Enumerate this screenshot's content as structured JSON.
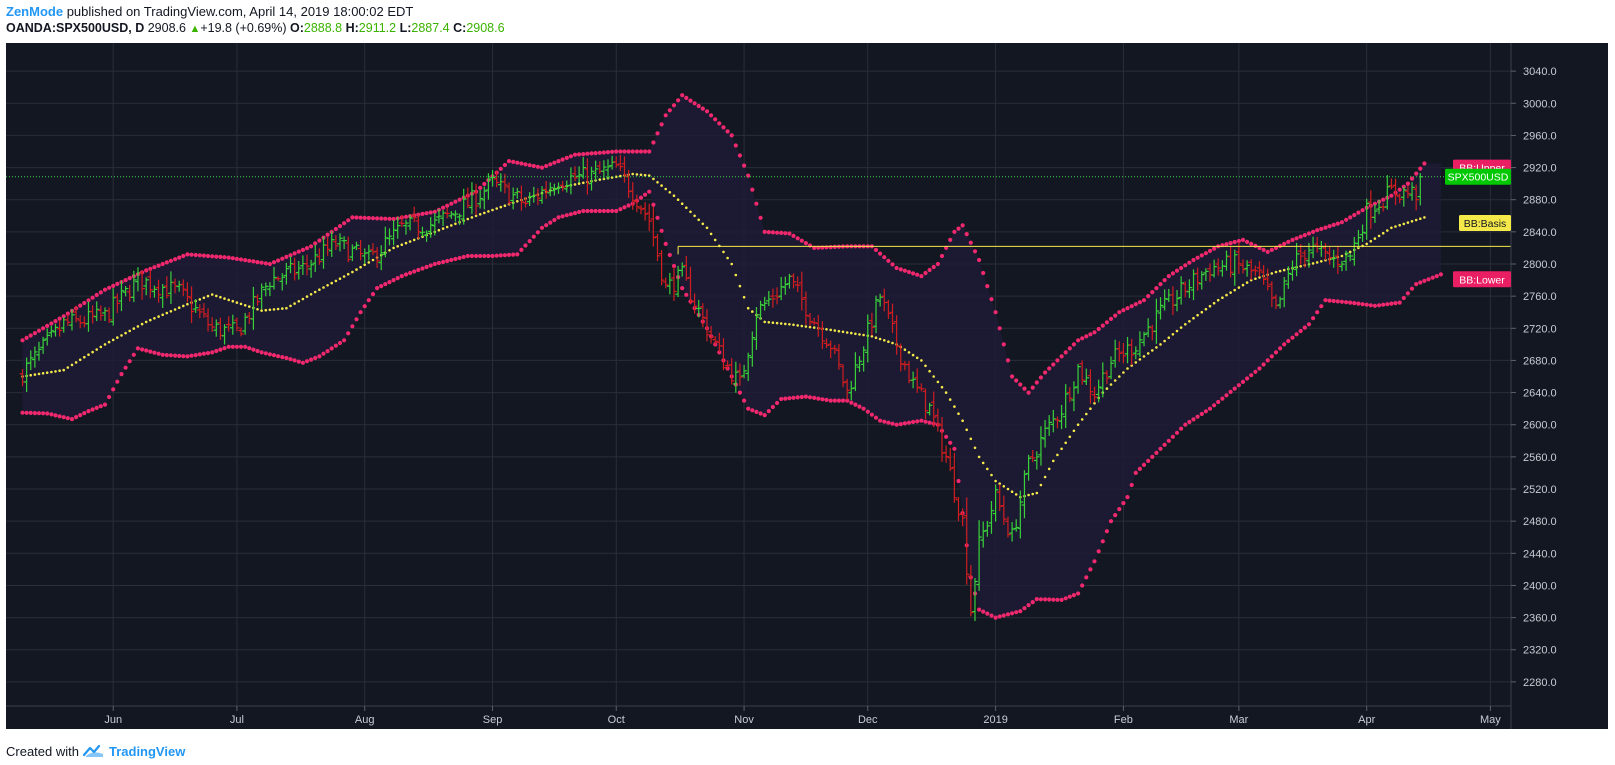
{
  "header": {
    "author": "ZenMode",
    "published_text": "published on TradingView.com, April 14, 2019 18:00:02 EDT",
    "symbol": "OANDA:SPX500USD, D",
    "last_price": "2908.6",
    "change_arrow": "▲",
    "change": "+19.8 (+0.69%)",
    "open_label": "O:",
    "open": "2888.8",
    "high_label": "H:",
    "high": "2911.2",
    "low_label": "L:",
    "low": "2887.4",
    "close_label": "C:",
    "close": "2908.6"
  },
  "footer": {
    "created_with": "Created with",
    "brand": "TradingView"
  },
  "colors": {
    "background": "#131722",
    "grid": "#2a2e39",
    "up": "#39d13a",
    "down": "#d11d20",
    "band": "#f0286e",
    "basis": "#f5e94a",
    "hline": "#f5e94a",
    "price_line": "#3bd34a",
    "axis_text": "#c8cbd2"
  },
  "chart_data": {
    "type": "ohlc",
    "title": "OANDA:SPX500USD, D",
    "y_axis": {
      "range": [
        2250,
        3075
      ],
      "ticks": [
        "3040.0",
        "3000.0",
        "2960.0",
        "2920.0",
        "2880.0",
        "2840.0",
        "2800.0",
        "2760.0",
        "2720.0",
        "2680.0",
        "2640.0",
        "2600.0",
        "2560.0",
        "2520.0",
        "2480.0",
        "2440.0",
        "2400.0",
        "2360.0",
        "2320.0",
        "2280.0"
      ]
    },
    "x_axis": {
      "labels": [
        {
          "text": "Jun",
          "day": 22
        },
        {
          "text": "Jul",
          "day": 52
        },
        {
          "text": "Aug",
          "day": 83
        },
        {
          "text": "Sep",
          "day": 114
        },
        {
          "text": "Oct",
          "day": 144
        },
        {
          "text": "Nov",
          "day": 175
        },
        {
          "text": "Dec",
          "day": 205
        },
        {
          "text": "2019",
          "day": 236
        },
        {
          "text": "Feb",
          "day": 267
        },
        {
          "text": "Mar",
          "day": 295
        },
        {
          "text": "Apr",
          "day": 326
        },
        {
          "text": "May",
          "day": 356
        }
      ],
      "day_range": [
        -4,
        361
      ]
    },
    "horizontal_line": {
      "value": 2822,
      "start_day": 159
    },
    "last_price_line": {
      "value": 2908.6
    },
    "badges": {
      "upper": {
        "label": "BB:Upper",
        "value": 2920
      },
      "price": {
        "label": "SPX500USD",
        "value": 2908.6
      },
      "basis": {
        "label": "BB:Basis",
        "value": 2851
      },
      "lower": {
        "label": "BB:Lower",
        "value": 2781
      }
    },
    "anchors": {
      "close": [
        [
          0,
          2665
        ],
        [
          10,
          2725
        ],
        [
          20,
          2735
        ],
        [
          28,
          2780
        ],
        [
          38,
          2765
        ],
        [
          46,
          2720
        ],
        [
          52,
          2715
        ],
        [
          60,
          2780
        ],
        [
          68,
          2795
        ],
        [
          76,
          2825
        ],
        [
          84,
          2805
        ],
        [
          92,
          2845
        ],
        [
          100,
          2850
        ],
        [
          108,
          2875
        ],
        [
          114,
          2900
        ],
        [
          122,
          2875
        ],
        [
          130,
          2905
        ],
        [
          138,
          2910
        ],
        [
          144,
          2920
        ],
        [
          148,
          2890
        ],
        [
          152,
          2855
        ],
        [
          156,
          2770
        ],
        [
          160,
          2785
        ],
        [
          166,
          2720
        ],
        [
          170,
          2680
        ],
        [
          174,
          2650
        ],
        [
          178,
          2740
        ],
        [
          182,
          2760
        ],
        [
          186,
          2780
        ],
        [
          192,
          2730
        ],
        [
          196,
          2700
        ],
        [
          200,
          2640
        ],
        [
          204,
          2700
        ],
        [
          208,
          2760
        ],
        [
          212,
          2700
        ],
        [
          216,
          2650
        ],
        [
          220,
          2620
        ],
        [
          224,
          2560
        ],
        [
          228,
          2480
        ],
        [
          230,
          2370
        ],
        [
          232,
          2450
        ],
        [
          236,
          2510
        ],
        [
          240,
          2460
        ],
        [
          244,
          2550
        ],
        [
          248,
          2590
        ],
        [
          252,
          2620
        ],
        [
          256,
          2670
        ],
        [
          260,
          2640
        ],
        [
          264,
          2680
        ],
        [
          270,
          2700
        ],
        [
          276,
          2740
        ],
        [
          282,
          2770
        ],
        [
          288,
          2795
        ],
        [
          294,
          2800
        ],
        [
          300,
          2785
        ],
        [
          304,
          2740
        ],
        [
          308,
          2800
        ],
        [
          312,
          2820
        ],
        [
          318,
          2805
        ],
        [
          322,
          2810
        ],
        [
          326,
          2865
        ],
        [
          332,
          2890
        ],
        [
          338,
          2888
        ],
        [
          339,
          2908.6
        ]
      ],
      "upper": [
        [
          0,
          2705
        ],
        [
          10,
          2735
        ],
        [
          20,
          2768
        ],
        [
          30,
          2792
        ],
        [
          40,
          2812
        ],
        [
          50,
          2808
        ],
        [
          60,
          2800
        ],
        [
          70,
          2822
        ],
        [
          80,
          2858
        ],
        [
          90,
          2856
        ],
        [
          100,
          2865
        ],
        [
          110,
          2890
        ],
        [
          118,
          2928
        ],
        [
          126,
          2920
        ],
        [
          134,
          2936
        ],
        [
          144,
          2940
        ],
        [
          152,
          2940
        ],
        [
          156,
          2985
        ],
        [
          160,
          3010
        ],
        [
          166,
          2990
        ],
        [
          172,
          2960
        ],
        [
          176,
          2910
        ],
        [
          180,
          2840
        ],
        [
          186,
          2838
        ],
        [
          192,
          2820
        ],
        [
          200,
          2822
        ],
        [
          206,
          2822
        ],
        [
          212,
          2795
        ],
        [
          218,
          2785
        ],
        [
          222,
          2800
        ],
        [
          226,
          2840
        ],
        [
          228,
          2848
        ],
        [
          232,
          2805
        ],
        [
          236,
          2740
        ],
        [
          240,
          2660
        ],
        [
          244,
          2640
        ],
        [
          248,
          2665
        ],
        [
          252,
          2685
        ],
        [
          256,
          2705
        ],
        [
          260,
          2715
        ],
        [
          266,
          2740
        ],
        [
          272,
          2755
        ],
        [
          278,
          2785
        ],
        [
          284,
          2805
        ],
        [
          290,
          2822
        ],
        [
          296,
          2830
        ],
        [
          302,
          2815
        ],
        [
          308,
          2830
        ],
        [
          314,
          2842
        ],
        [
          320,
          2852
        ],
        [
          326,
          2870
        ],
        [
          332,
          2885
        ],
        [
          336,
          2900
        ],
        [
          340,
          2925
        ]
      ],
      "basis": [
        [
          0,
          2660
        ],
        [
          10,
          2668
        ],
        [
          20,
          2700
        ],
        [
          30,
          2728
        ],
        [
          40,
          2750
        ],
        [
          46,
          2762
        ],
        [
          52,
          2752
        ],
        [
          58,
          2742
        ],
        [
          64,
          2745
        ],
        [
          72,
          2768
        ],
        [
          80,
          2790
        ],
        [
          90,
          2820
        ],
        [
          100,
          2840
        ],
        [
          110,
          2860
        ],
        [
          120,
          2878
        ],
        [
          130,
          2895
        ],
        [
          140,
          2905
        ],
        [
          148,
          2912
        ],
        [
          152,
          2910
        ],
        [
          158,
          2885
        ],
        [
          166,
          2845
        ],
        [
          172,
          2800
        ],
        [
          176,
          2745
        ],
        [
          180,
          2728
        ],
        [
          186,
          2725
        ],
        [
          196,
          2718
        ],
        [
          206,
          2710
        ],
        [
          212,
          2700
        ],
        [
          218,
          2680
        ],
        [
          224,
          2640
        ],
        [
          228,
          2605
        ],
        [
          232,
          2560
        ],
        [
          236,
          2530
        ],
        [
          242,
          2510
        ],
        [
          246,
          2515
        ],
        [
          250,
          2555
        ],
        [
          256,
          2600
        ],
        [
          262,
          2640
        ],
        [
          268,
          2670
        ],
        [
          276,
          2700
        ],
        [
          282,
          2725
        ],
        [
          290,
          2755
        ],
        [
          298,
          2780
        ],
        [
          304,
          2790
        ],
        [
          314,
          2802
        ],
        [
          320,
          2810
        ],
        [
          326,
          2825
        ],
        [
          332,
          2845
        ],
        [
          340,
          2858
        ]
      ],
      "lower": [
        [
          0,
          2615
        ],
        [
          6,
          2614
        ],
        [
          12,
          2607
        ],
        [
          16,
          2617
        ],
        [
          20,
          2625
        ],
        [
          24,
          2663
        ],
        [
          28,
          2695
        ],
        [
          34,
          2687
        ],
        [
          40,
          2685
        ],
        [
          46,
          2690
        ],
        [
          50,
          2697
        ],
        [
          54,
          2697
        ],
        [
          58,
          2690
        ],
        [
          64,
          2683
        ],
        [
          68,
          2677
        ],
        [
          72,
          2685
        ],
        [
          78,
          2705
        ],
        [
          82,
          2740
        ],
        [
          86,
          2770
        ],
        [
          92,
          2785
        ],
        [
          100,
          2800
        ],
        [
          108,
          2810
        ],
        [
          114,
          2810
        ],
        [
          120,
          2812
        ],
        [
          126,
          2845
        ],
        [
          130,
          2858
        ],
        [
          136,
          2866
        ],
        [
          144,
          2866
        ],
        [
          148,
          2875
        ],
        [
          152,
          2890
        ],
        [
          156,
          2825
        ],
        [
          160,
          2770
        ],
        [
          166,
          2720
        ],
        [
          172,
          2660
        ],
        [
          176,
          2620
        ],
        [
          180,
          2612
        ],
        [
          184,
          2632
        ],
        [
          190,
          2635
        ],
        [
          196,
          2630
        ],
        [
          200,
          2630
        ],
        [
          204,
          2620
        ],
        [
          208,
          2605
        ],
        [
          212,
          2600
        ],
        [
          218,
          2605
        ],
        [
          222,
          2600
        ],
        [
          226,
          2570
        ],
        [
          230,
          2410
        ],
        [
          232,
          2370
        ],
        [
          236,
          2360
        ],
        [
          242,
          2368
        ],
        [
          246,
          2383
        ],
        [
          252,
          2382
        ],
        [
          256,
          2390
        ],
        [
          260,
          2430
        ],
        [
          264,
          2480
        ],
        [
          268,
          2510
        ],
        [
          270,
          2540
        ],
        [
          276,
          2570
        ],
        [
          282,
          2600
        ],
        [
          288,
          2620
        ],
        [
          294,
          2645
        ],
        [
          300,
          2670
        ],
        [
          306,
          2700
        ],
        [
          312,
          2725
        ],
        [
          316,
          2755
        ],
        [
          322,
          2752
        ],
        [
          328,
          2748
        ],
        [
          334,
          2752
        ],
        [
          338,
          2775
        ],
        [
          344,
          2787
        ]
      ]
    },
    "notes": "Daily OHLC bars with Bollinger Bands (upper, basis, lower) plotted as dots; values estimated from the price axis."
  }
}
